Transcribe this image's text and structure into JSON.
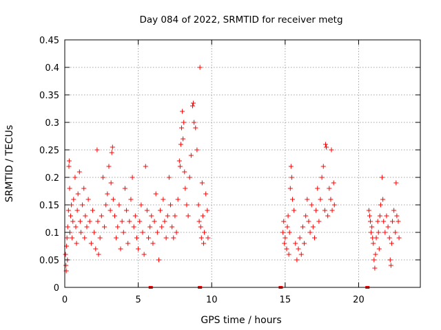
{
  "chart_data": {
    "type": "scatter",
    "title": "Day 084 of 2022, SRMTID for receiver metg",
    "xlabel": "GPS time / hours",
    "ylabel": "SRMTID / TECUs",
    "xlim": [
      0,
      24.2
    ],
    "ylim": [
      0,
      0.45
    ],
    "x_ticks": [
      0,
      5,
      10,
      15,
      20
    ],
    "y_ticks": [
      0,
      0.05,
      0.1,
      0.15,
      0.2,
      0.25,
      0.3,
      0.35,
      0.4,
      0.45
    ],
    "x_tick_labels": [
      "0",
      "5",
      "10",
      "15",
      "20"
    ],
    "y_tick_labels": [
      "0",
      "0.05",
      "0.1",
      "0.15",
      "0.2",
      "0.25",
      "0.3",
      "0.35",
      "0.4",
      "0.45"
    ],
    "grid": true,
    "marker": "+",
    "color": "#ff0000",
    "series": [
      {
        "name": "SRMTID",
        "points": [
          [
            0.05,
            0.06
          ],
          [
            0.08,
            0.04
          ],
          [
            0.1,
            0.03
          ],
          [
            0.12,
            0.075
          ],
          [
            0.15,
            0.09
          ],
          [
            0.18,
            0.05
          ],
          [
            0.2,
            0.11
          ],
          [
            0.25,
            0.14
          ],
          [
            0.28,
            0.22
          ],
          [
            0.3,
            0.23
          ],
          [
            0.33,
            0.18
          ],
          [
            0.35,
            0.1
          ],
          [
            0.4,
            0.13
          ],
          [
            0.45,
            0.15
          ],
          [
            0.5,
            0.09
          ],
          [
            0.55,
            0.12
          ],
          [
            0.6,
            0.16
          ],
          [
            0.7,
            0.2
          ],
          [
            0.75,
            0.11
          ],
          [
            0.8,
            0.08
          ],
          [
            0.85,
            0.14
          ],
          [
            0.9,
            0.17
          ],
          [
            1.0,
            0.21
          ],
          [
            1.05,
            0.12
          ],
          [
            1.1,
            0.1
          ],
          [
            1.2,
            0.15
          ],
          [
            1.3,
            0.18
          ],
          [
            1.35,
            0.09
          ],
          [
            1.4,
            0.13
          ],
          [
            1.5,
            0.11
          ],
          [
            1.6,
            0.16
          ],
          [
            1.7,
            0.12
          ],
          [
            1.8,
            0.08
          ],
          [
            1.9,
            0.14
          ],
          [
            2.0,
            0.1
          ],
          [
            2.1,
            0.07
          ],
          [
            2.2,
            0.25
          ],
          [
            2.25,
            0.12
          ],
          [
            2.3,
            0.06
          ],
          [
            2.4,
            0.09
          ],
          [
            2.5,
            0.13
          ],
          [
            2.6,
            0.2
          ],
          [
            2.7,
            0.11
          ],
          [
            2.8,
            0.15
          ],
          [
            2.9,
            0.17
          ],
          [
            3.0,
            0.22
          ],
          [
            3.1,
            0.14
          ],
          [
            3.15,
            0.19
          ],
          [
            3.2,
            0.245
          ],
          [
            3.25,
            0.255
          ],
          [
            3.3,
            0.16
          ],
          [
            3.4,
            0.13
          ],
          [
            3.5,
            0.09
          ],
          [
            3.6,
            0.11
          ],
          [
            3.7,
            0.15
          ],
          [
            3.8,
            0.07
          ],
          [
            3.9,
            0.12
          ],
          [
            4.0,
            0.1
          ],
          [
            4.1,
            0.18
          ],
          [
            4.2,
            0.14
          ],
          [
            4.3,
            0.08
          ],
          [
            4.4,
            0.12
          ],
          [
            4.5,
            0.16
          ],
          [
            4.6,
            0.2
          ],
          [
            4.7,
            0.11
          ],
          [
            4.8,
            0.13
          ],
          [
            4.9,
            0.09
          ],
          [
            5.0,
            0.07
          ],
          [
            5.1,
            0.12
          ],
          [
            5.2,
            0.15
          ],
          [
            5.3,
            0.1
          ],
          [
            5.4,
            0.06
          ],
          [
            5.5,
            0.22
          ],
          [
            5.6,
            0.14
          ],
          [
            5.7,
            0.09
          ],
          [
            5.8,
            0.11
          ],
          [
            5.9,
            0.13
          ],
          [
            6.0,
            0.08
          ],
          [
            6.1,
            0.12
          ],
          [
            6.2,
            0.17
          ],
          [
            6.3,
            0.1
          ],
          [
            6.4,
            0.05
          ],
          [
            6.5,
            0.14
          ],
          [
            6.6,
            0.11
          ],
          [
            6.7,
            0.16
          ],
          [
            6.8,
            0.12
          ],
          [
            6.9,
            0.09
          ],
          [
            7.0,
            0.13
          ],
          [
            7.1,
            0.2
          ],
          [
            7.2,
            0.15
          ],
          [
            7.3,
            0.11
          ],
          [
            7.4,
            0.09
          ],
          [
            7.5,
            0.13
          ],
          [
            7.6,
            0.1
          ],
          [
            7.7,
            0.16
          ],
          [
            7.8,
            0.23
          ],
          [
            7.85,
            0.22
          ],
          [
            7.9,
            0.26
          ],
          [
            7.95,
            0.29
          ],
          [
            8.0,
            0.32
          ],
          [
            8.05,
            0.27
          ],
          [
            8.1,
            0.3
          ],
          [
            8.15,
            0.21
          ],
          [
            8.2,
            0.18
          ],
          [
            8.3,
            0.15
          ],
          [
            8.4,
            0.13
          ],
          [
            8.5,
            0.2
          ],
          [
            8.6,
            0.24
          ],
          [
            8.7,
            0.33
          ],
          [
            8.75,
            0.335
          ],
          [
            8.8,
            0.3
          ],
          [
            8.9,
            0.29
          ],
          [
            9.0,
            0.25
          ],
          [
            9.1,
            0.15
          ],
          [
            9.15,
            0.12
          ],
          [
            9.2,
            0.4
          ],
          [
            9.25,
            0.11
          ],
          [
            9.3,
            0.09
          ],
          [
            9.35,
            0.19
          ],
          [
            9.4,
            0.13
          ],
          [
            9.45,
            0.08
          ],
          [
            9.5,
            0.1
          ],
          [
            9.6,
            0.17
          ],
          [
            9.7,
            0.14
          ],
          [
            9.75,
            0.09
          ],
          [
            14.85,
            0.1
          ],
          [
            14.9,
            0.12
          ],
          [
            14.95,
            0.08
          ],
          [
            15.0,
            0.09
          ],
          [
            15.1,
            0.07
          ],
          [
            15.15,
            0.11
          ],
          [
            15.2,
            0.13
          ],
          [
            15.25,
            0.06
          ],
          [
            15.3,
            0.1
          ],
          [
            15.35,
            0.18
          ],
          [
            15.4,
            0.22
          ],
          [
            15.45,
            0.2
          ],
          [
            15.5,
            0.16
          ],
          [
            15.6,
            0.14
          ],
          [
            15.7,
            0.08
          ],
          [
            15.8,
            0.05
          ],
          [
            15.9,
            0.07
          ],
          [
            16.0,
            0.09
          ],
          [
            16.1,
            0.06
          ],
          [
            16.2,
            0.11
          ],
          [
            16.3,
            0.08
          ],
          [
            16.4,
            0.13
          ],
          [
            16.5,
            0.16
          ],
          [
            16.6,
            0.12
          ],
          [
            16.7,
            0.1
          ],
          [
            16.8,
            0.15
          ],
          [
            16.9,
            0.11
          ],
          [
            17.0,
            0.09
          ],
          [
            17.1,
            0.14
          ],
          [
            17.2,
            0.18
          ],
          [
            17.3,
            0.12
          ],
          [
            17.4,
            0.16
          ],
          [
            17.5,
            0.2
          ],
          [
            17.6,
            0.22
          ],
          [
            17.7,
            0.14
          ],
          [
            17.75,
            0.26
          ],
          [
            17.8,
            0.255
          ],
          [
            17.9,
            0.13
          ],
          [
            18.0,
            0.18
          ],
          [
            18.1,
            0.16
          ],
          [
            18.15,
            0.25
          ],
          [
            18.2,
            0.14
          ],
          [
            18.3,
            0.19
          ],
          [
            18.35,
            0.15
          ],
          [
            20.7,
            0.14
          ],
          [
            20.75,
            0.13
          ],
          [
            20.8,
            0.12
          ],
          [
            20.85,
            0.1
          ],
          [
            20.9,
            0.11
          ],
          [
            20.95,
            0.09
          ],
          [
            21.0,
            0.08
          ],
          [
            21.05,
            0.05
          ],
          [
            21.1,
            0.035
          ],
          [
            21.15,
            0.06
          ],
          [
            21.2,
            0.09
          ],
          [
            21.3,
            0.12
          ],
          [
            21.35,
            0.1
          ],
          [
            21.4,
            0.07
          ],
          [
            21.45,
            0.13
          ],
          [
            21.5,
            0.15
          ],
          [
            21.6,
            0.2
          ],
          [
            21.65,
            0.16
          ],
          [
            21.7,
            0.12
          ],
          [
            21.8,
            0.1
          ],
          [
            21.9,
            0.13
          ],
          [
            22.0,
            0.11
          ],
          [
            22.1,
            0.09
          ],
          [
            22.15,
            0.05
          ],
          [
            22.2,
            0.04
          ],
          [
            22.25,
            0.08
          ],
          [
            22.3,
            0.12
          ],
          [
            22.4,
            0.14
          ],
          [
            22.5,
            0.1
          ],
          [
            22.55,
            0.19
          ],
          [
            22.6,
            0.13
          ],
          [
            22.7,
            0.12
          ],
          [
            22.75,
            0.09
          ]
        ]
      }
    ],
    "zero_markers": [
      5.85,
      9.2,
      14.7,
      20.6
    ]
  }
}
